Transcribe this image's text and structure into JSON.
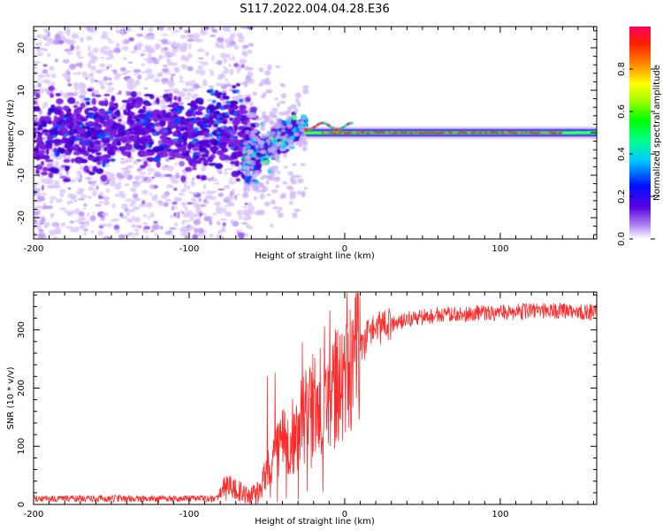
{
  "title": "S117.2022.004.04.28.E36",
  "colors": {
    "axis": "#000000",
    "snr_line": "#ff2a2a",
    "spec_low": "#e8d8fa",
    "spec_mid": "#7b1fe0",
    "spec_core": "#3300cc"
  },
  "chart_data": [
    {
      "type": "heatmap",
      "title": "S117.2022.004.04.28.E36",
      "xlabel": "Height of straight line (km)",
      "ylabel": "Frequency (Hz)",
      "xlim": [
        -200,
        162
      ],
      "ylim": [
        -25,
        25
      ],
      "x_ticks": [
        -200,
        -100,
        0,
        100
      ],
      "y_ticks": [
        -20,
        -10,
        0,
        10,
        20
      ],
      "colorbar": {
        "label": "Normalized spectral amplitude",
        "range": [
          0.0,
          1.0
        ],
        "ticks": [
          "0.0",
          "0.2",
          "0.4",
          "0.6",
          "0.8"
        ],
        "colormap": "rainbow"
      },
      "description_points": {
        "noise_region_x": [
          -200,
          -65
        ],
        "noise_spread_hz": 25,
        "transition_x": [
          -65,
          -25
        ],
        "transition_freq_hz": [
          -8,
          2
        ],
        "steady_x": [
          -25,
          162
        ],
        "steady_freq_hz": 0,
        "peak_amplitude_region_x": [
          0,
          140
        ]
      }
    },
    {
      "type": "line",
      "xlabel": "Height of straight line (km)",
      "ylabel": "SNR (10 * v/v)",
      "xlim": [
        -200,
        162
      ],
      "ylim": [
        0,
        365
      ],
      "x_ticks": [
        -200,
        -100,
        0,
        100
      ],
      "y_ticks": [
        0,
        100,
        200,
        300
      ],
      "series": [
        {
          "x": [
            -200,
            -150,
            -100,
            -82,
            -78,
            -70,
            -60,
            -55,
            -50,
            -45,
            -40,
            -35,
            -30,
            -25,
            -20,
            -15,
            -10,
            -5,
            0,
            5,
            10,
            15,
            20,
            25,
            30,
            40,
            50,
            60,
            80,
            100,
            120,
            140,
            162
          ],
          "values": [
            10,
            10,
            10,
            10,
            35,
            25,
            15,
            20,
            60,
            80,
            110,
            95,
            130,
            150,
            170,
            175,
            185,
            200,
            215,
            240,
            265,
            290,
            300,
            305,
            310,
            318,
            322,
            326,
            328,
            330,
            332,
            333,
            330
          ]
        }
      ]
    }
  ]
}
